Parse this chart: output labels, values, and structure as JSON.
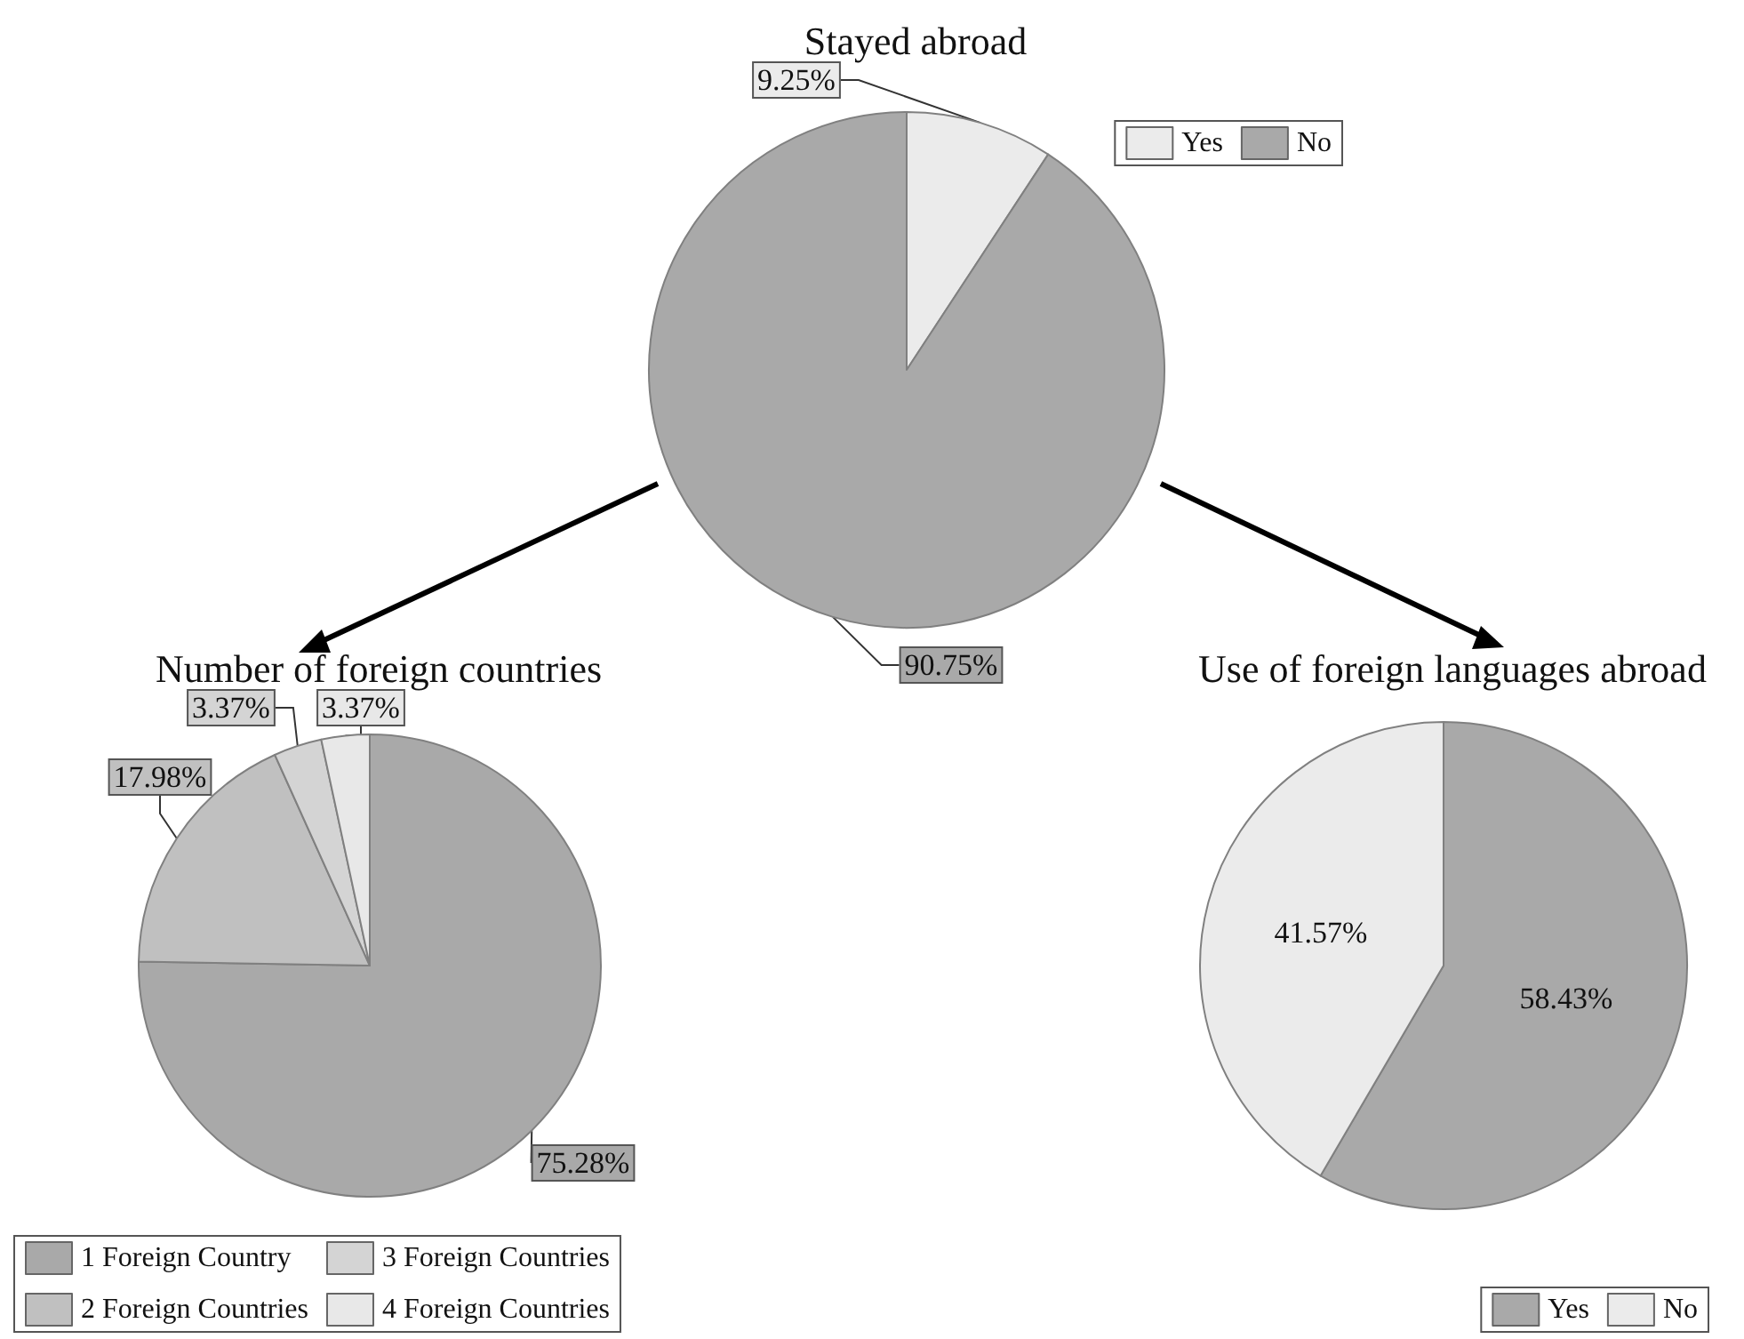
{
  "chart_data": [
    {
      "type": "pie",
      "title": "Stayed abroad",
      "categories": [
        "Yes",
        "No"
      ],
      "values": [
        9.25,
        90.75
      ],
      "colors": [
        "#ebebeb",
        "#a9a9a9"
      ],
      "value_labels": [
        "9.25%",
        "90.75%"
      ],
      "legend": "top right"
    },
    {
      "type": "pie",
      "title": "Number of foreign countries",
      "categories": [
        "1 Foreign Country",
        "2 Foreign Countries",
        "3 Foreign Countries",
        "4 Foreign Countries"
      ],
      "values": [
        75.28,
        17.98,
        3.37,
        3.37
      ],
      "colors": [
        "#a9a9a9",
        "#c0c0c0",
        "#d4d4d4",
        "#e8e8e8"
      ],
      "value_labels": [
        "75.28%",
        "17.98%",
        "3.37%",
        "3.37%"
      ],
      "legend": "bottom"
    },
    {
      "type": "pie",
      "title": "Use of foreign languages abroad",
      "categories": [
        "Yes",
        "No"
      ],
      "values": [
        58.43,
        41.57
      ],
      "colors": [
        "#a9a9a9",
        "#ebebeb"
      ],
      "value_labels": [
        "58.43%",
        "41.57%"
      ],
      "legend": "bottom"
    }
  ]
}
